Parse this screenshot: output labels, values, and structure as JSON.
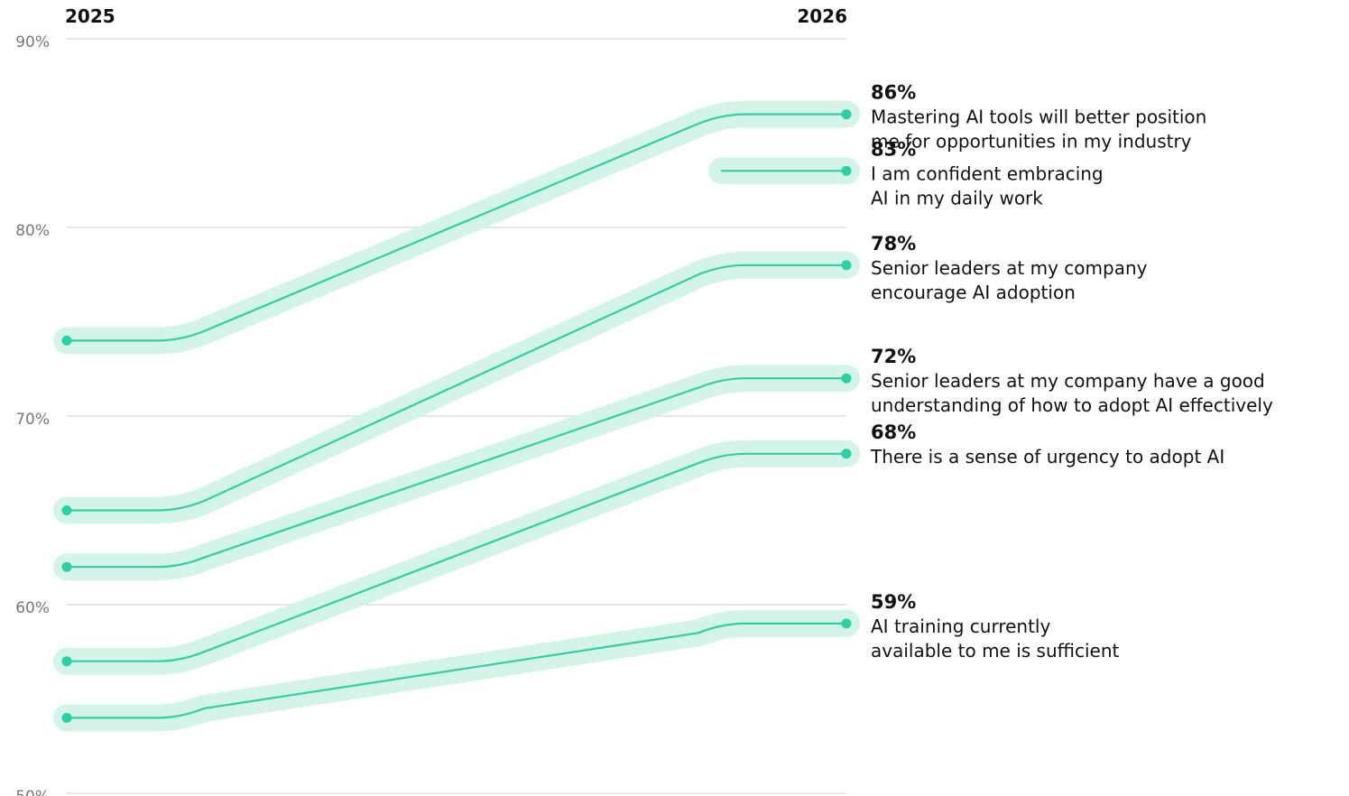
{
  "chart_data": {
    "type": "line",
    "categories": [
      "2025",
      "2026"
    ],
    "ylim": [
      50,
      90
    ],
    "yticks": [
      "90%",
      "80%",
      "70%",
      "60%",
      "50%"
    ],
    "ytick_values": [
      90,
      80,
      70,
      60,
      50
    ],
    "grid": true,
    "colors": {
      "line": "#2ecfa6",
      "band": "#d4f4ea",
      "grid": "#cccccc",
      "tick_text": "#777777",
      "label_text": "#111111"
    },
    "series": [
      {
        "name": "Mastering AI tools will better position me for opportunities in my industry",
        "values": [
          74,
          86
        ],
        "value_label": "86%",
        "label_lines": [
          "Mastering AI tools will better position",
          "me for opportunities in my industry"
        ]
      },
      {
        "name": "I am confident embracing AI in my daily work",
        "values": [
          null,
          83
        ],
        "value_label": "83%",
        "label_lines": [
          "I am confident embracing",
          "AI in my daily work"
        ]
      },
      {
        "name": "Senior leaders at my company encourage AI adoption",
        "values": [
          65,
          78
        ],
        "value_label": "78%",
        "label_lines": [
          "Senior leaders at my company",
          "encourage AI adoption"
        ]
      },
      {
        "name": "Senior leaders at my company have a good understanding of how to adopt AI effectively",
        "values": [
          62,
          72
        ],
        "value_label": "72%",
        "label_lines": [
          "Senior leaders at my company have a good",
          "understanding of how to adopt AI effectively"
        ]
      },
      {
        "name": "There is a sense of urgency to adopt AI",
        "values": [
          57,
          68
        ],
        "value_label": "68%",
        "label_lines": [
          "There is a sense of urgency to adopt AI"
        ]
      },
      {
        "name": "AI training currently available to me is sufficient",
        "values": [
          54,
          59
        ],
        "value_label": "59%",
        "label_lines": [
          "AI training currently",
          "available to me is sufficient"
        ]
      }
    ]
  }
}
